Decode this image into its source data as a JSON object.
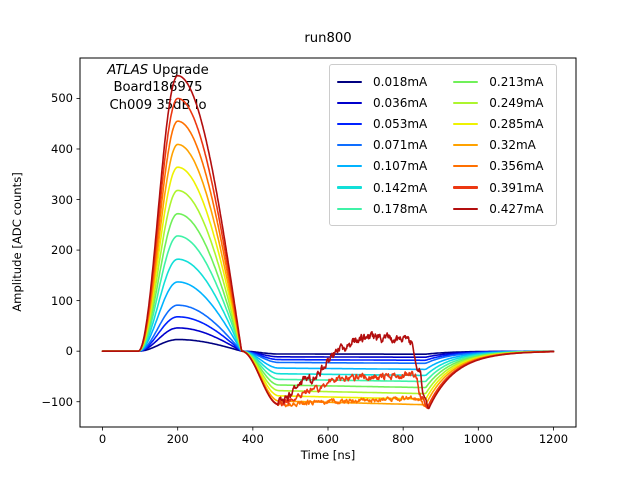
{
  "chart_data": {
    "type": "line",
    "title": "run800",
    "xlabel": "Time [ns]",
    "ylabel": "Amplitude [ADC counts]",
    "xlim": [
      -60,
      1260
    ],
    "ylim": [
      -150,
      580
    ],
    "x_ticks": [
      0,
      200,
      400,
      600,
      800,
      1000,
      1200
    ],
    "y_ticks": [
      -100,
      0,
      100,
      200,
      300,
      400,
      500
    ],
    "grid": false,
    "legend_position": "upper right",
    "annotation": {
      "brand": "ATLAS",
      "line1_rest": "Upgrade",
      "line2": "Board186975",
      "line3": "Ch009 35dB lo"
    },
    "pulse_shape": {
      "start_ns": 95,
      "peak_ns": 200,
      "zero_cross_ns": 370,
      "saturation_floor_adc": -112,
      "recovery_start_ns": 860,
      "recovery_tau_ns": 70
    },
    "series": [
      {
        "label": "0.018mA",
        "color": "#000080",
        "peak_adc": 23,
        "undershoot_adc": 6,
        "noisy": false
      },
      {
        "label": "0.036mA",
        "color": "#0000CC",
        "peak_adc": 46,
        "undershoot_adc": 12,
        "noisy": false
      },
      {
        "label": "0.053mA",
        "color": "#0021FF",
        "peak_adc": 68,
        "undershoot_adc": 18,
        "noisy": false
      },
      {
        "label": "0.071mA",
        "color": "#0E6EFF",
        "peak_adc": 91,
        "undershoot_adc": 24,
        "noisy": false
      },
      {
        "label": "0.107mA",
        "color": "#00B3FF",
        "peak_adc": 137,
        "undershoot_adc": 36,
        "noisy": false
      },
      {
        "label": "0.142mA",
        "color": "#12DFD8",
        "peak_adc": 182,
        "undershoot_adc": 48,
        "noisy": false
      },
      {
        "label": "0.178mA",
        "color": "#3FF2A7",
        "peak_adc": 228,
        "undershoot_adc": 60,
        "noisy": false
      },
      {
        "label": "0.213mA",
        "color": "#70F059",
        "peak_adc": 272,
        "undershoot_adc": 72,
        "noisy": false
      },
      {
        "label": "0.249mA",
        "color": "#ADF52E",
        "peak_adc": 318,
        "undershoot_adc": 84,
        "noisy": false
      },
      {
        "label": "0.285mA",
        "color": "#EEF201",
        "peak_adc": 364,
        "undershoot_adc": 95,
        "noisy": false
      },
      {
        "label": "0.32mA",
        "color": "#FFA200",
        "peak_adc": 409,
        "undershoot_adc": 106,
        "noisy": false
      },
      {
        "label": "0.356mA",
        "color": "#FF7000",
        "peak_adc": 455,
        "undershoot_adc": 113,
        "noisy": true,
        "noise_amp": 6,
        "recovery_path": [
          [
            468,
            -104
          ],
          [
            600,
            -100
          ],
          [
            840,
            -93
          ],
          [
            858,
            -109
          ],
          [
            866,
            -113
          ]
        ]
      },
      {
        "label": "0.391mA",
        "color": "#EC3812",
        "peak_adc": 500,
        "undershoot_adc": 113,
        "noisy": true,
        "noise_amp": 8,
        "recovery_path": [
          [
            470,
            -104
          ],
          [
            560,
            -78
          ],
          [
            620,
            -55
          ],
          [
            700,
            -51
          ],
          [
            830,
            -47
          ],
          [
            850,
            -90
          ],
          [
            864,
            -112
          ]
        ]
      },
      {
        "label": "0.427mA",
        "color": "#B30E0E",
        "peak_adc": 545,
        "undershoot_adc": 114,
        "noisy": true,
        "noise_amp": 11,
        "recovery_path": [
          [
            466,
            -102
          ],
          [
            550,
            -55
          ],
          [
            640,
            5
          ],
          [
            680,
            22
          ],
          [
            700,
            27
          ],
          [
            790,
            25
          ],
          [
            822,
            16
          ],
          [
            842,
            -35
          ],
          [
            858,
            -92
          ],
          [
            868,
            -114
          ]
        ]
      }
    ]
  }
}
